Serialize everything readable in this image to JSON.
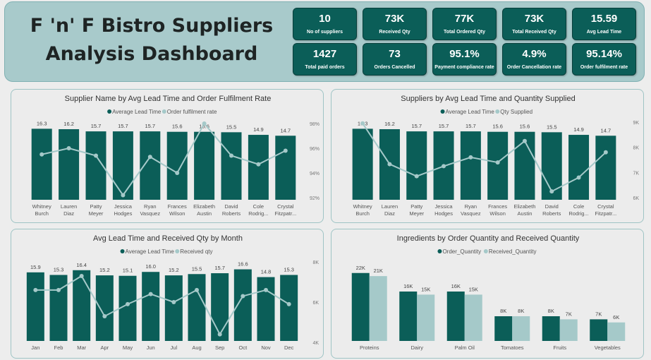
{
  "title": {
    "line1": "F 'n' F Bistro Suppliers",
    "line2": "Analysis Dashboard"
  },
  "colors": {
    "primary": "#0b5e58",
    "secondary": "#a5c9c9",
    "header_bg": "#a8cacb"
  },
  "kpis": [
    {
      "value": "10",
      "label": "No of suppliers"
    },
    {
      "value": "73K",
      "label": "Received Qty"
    },
    {
      "value": "77K",
      "label": "Total Ordered Qty"
    },
    {
      "value": "73K",
      "label": "Total Received Qty"
    },
    {
      "value": "15.59",
      "label": "Avg Lead Time"
    },
    {
      "value": "1427",
      "label": "Total paid orders"
    },
    {
      "value": "73",
      "label": "Orders Cancelled"
    },
    {
      "value": "95.1%",
      "label": "Payment compliance rate"
    },
    {
      "value": "4.9%",
      "label": "Order Cancellation rate"
    },
    {
      "value": "95.14%",
      "label": "Order fulfilment rate"
    }
  ],
  "chart_data": [
    {
      "type": "bar",
      "title": "Supplier Name by Avg Lead Time and Order Fulfilment Rate",
      "categories": [
        [
          "Whitney",
          "Burch"
        ],
        [
          "Lauren",
          "Diaz"
        ],
        [
          "Patty",
          "Meyer"
        ],
        [
          "Jessica",
          "Hodges"
        ],
        [
          "Ryan",
          "Vasquez"
        ],
        [
          "Frances",
          "Wilson"
        ],
        [
          "Elizabeth",
          "Austin"
        ],
        [
          "David",
          "Roberts"
        ],
        [
          "Cole",
          "Rodrig..."
        ],
        [
          "Crystal",
          "Fitzpatr..."
        ]
      ],
      "series": [
        {
          "name": "Average Lead Time",
          "kind": "bar",
          "values": [
            16.3,
            16.2,
            15.7,
            15.7,
            15.7,
            15.6,
            15.6,
            15.5,
            14.9,
            14.7
          ],
          "labels": [
            "16.3",
            "16.2",
            "15.7",
            "15.7",
            "15.7",
            "15.6",
            "15.6",
            "15.5",
            "14.9",
            "14.7"
          ]
        },
        {
          "name": "Order fulfilment rate",
          "kind": "line",
          "values": [
            95.5,
            96.0,
            95.4,
            92.2,
            95.3,
            94.0,
            98.0,
            95.4,
            94.7,
            95.8
          ]
        }
      ],
      "right_axis": {
        "ticks": [
          "98%",
          "96%",
          "94%",
          "92%"
        ],
        "range": [
          92,
          98
        ]
      }
    },
    {
      "type": "bar",
      "title": "Suppliers by Avg Lead Time and Quantity Supplied",
      "categories": [
        [
          "Whitney",
          "Burch"
        ],
        [
          "Lauren",
          "Diaz"
        ],
        [
          "Patty",
          "Meyer"
        ],
        [
          "Jessica",
          "Hodges"
        ],
        [
          "Ryan",
          "Vasquez"
        ],
        [
          "Frances",
          "Wilson"
        ],
        [
          "Elizabeth",
          "Austin"
        ],
        [
          "David",
          "Roberts"
        ],
        [
          "Cole",
          "Rodrig..."
        ],
        [
          "Crystal",
          "Fitzpatr..."
        ]
      ],
      "series": [
        {
          "name": "Average Lead Time",
          "kind": "bar",
          "values": [
            16.3,
            16.2,
            15.7,
            15.7,
            15.7,
            15.6,
            15.6,
            15.5,
            14.9,
            14.7
          ],
          "labels": [
            "16.3",
            "16.2",
            "15.7",
            "15.7",
            "15.7",
            "15.6",
            "15.6",
            "15.5",
            "14.9",
            "14.7"
          ]
        },
        {
          "name": "Qty Supplied",
          "kind": "line",
          "values": [
            8950,
            7330,
            6850,
            7250,
            7600,
            7400,
            8250,
            6250,
            6800,
            7800
          ]
        }
      ],
      "right_axis": {
        "ticks": [
          "9K",
          "8K",
          "7K",
          "6K"
        ],
        "range": [
          6000,
          9000
        ]
      }
    },
    {
      "type": "bar",
      "title": "Avg Lead Time and Received Qty by Month",
      "categories": [
        "Jan",
        "Feb",
        "Mar",
        "Apr",
        "May",
        "Jun",
        "Jul",
        "Aug",
        "Sep",
        "Oct",
        "Nov",
        "Dec"
      ],
      "series": [
        {
          "name": "Average Lead Time",
          "kind": "bar",
          "values": [
            15.9,
            15.3,
            16.4,
            15.2,
            15.1,
            16.0,
            15.2,
            15.5,
            15.7,
            16.6,
            14.8,
            15.3
          ],
          "labels": [
            "15.9",
            "15.3",
            "16.4",
            "15.2",
            "15.1",
            "16.0",
            "15.2",
            "15.5",
            "15.7",
            "16.6",
            "14.8",
            "15.3"
          ]
        },
        {
          "name": "Received qty",
          "kind": "line",
          "values": [
            6600,
            6600,
            7300,
            5300,
            5900,
            6400,
            6000,
            6600,
            4400,
            6300,
            6600,
            5900
          ]
        }
      ],
      "right_axis": {
        "ticks": [
          "8K",
          "6K",
          "4K"
        ],
        "range": [
          4000,
          8000
        ]
      }
    },
    {
      "type": "bar",
      "title": "Ingredients by Order Quantity and Received Quantity",
      "categories": [
        "Proteins",
        "Dairy",
        "Palm Oil",
        "Tomatoes",
        "Fruits",
        "Vegetables"
      ],
      "series": [
        {
          "name": "Order_Quantity",
          "kind": "bar",
          "values": [
            22000,
            16000,
            16000,
            8000,
            8000,
            7000
          ],
          "labels": [
            "22K",
            "16K",
            "16K",
            "8K",
            "8K",
            "7K"
          ]
        },
        {
          "name": "Received_Quantity",
          "kind": "bar",
          "values": [
            21000,
            15000,
            15000,
            8000,
            7000,
            6000
          ],
          "labels": [
            "21K",
            "15K",
            "15K",
            "8K",
            "7K",
            "6K"
          ]
        }
      ]
    }
  ]
}
